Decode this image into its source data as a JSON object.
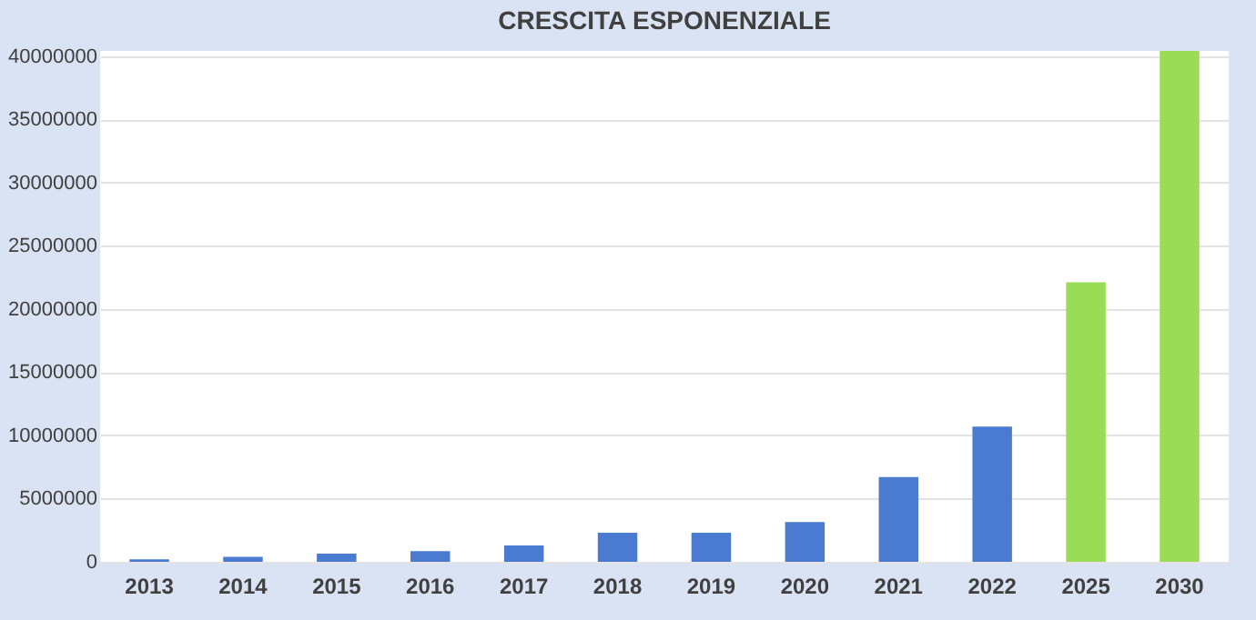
{
  "chart_data": {
    "type": "bar",
    "title": "CRESCITA ESPONENZIALE",
    "categories": [
      "2013",
      "2014",
      "2015",
      "2016",
      "2017",
      "2018",
      "2019",
      "2020",
      "2021",
      "2022",
      "2025",
      "2030"
    ],
    "values": [
      200000,
      400000,
      650000,
      850000,
      1300000,
      2300000,
      2300000,
      3150000,
      6700000,
      10700000,
      22100000,
      40400000
    ],
    "colors": [
      "#4a7bd0",
      "#4a7bd0",
      "#4a7bd0",
      "#4a7bd0",
      "#4a7bd0",
      "#4a7bd0",
      "#4a7bd0",
      "#4a7bd0",
      "#4a7bd0",
      "#4a7bd0",
      "#9bdc56",
      "#9bdc56"
    ],
    "ylim": [
      0,
      40400000
    ],
    "yticks": [
      0,
      5000000,
      10000000,
      15000000,
      20000000,
      25000000,
      30000000,
      35000000,
      40000000
    ],
    "grid": "y"
  }
}
